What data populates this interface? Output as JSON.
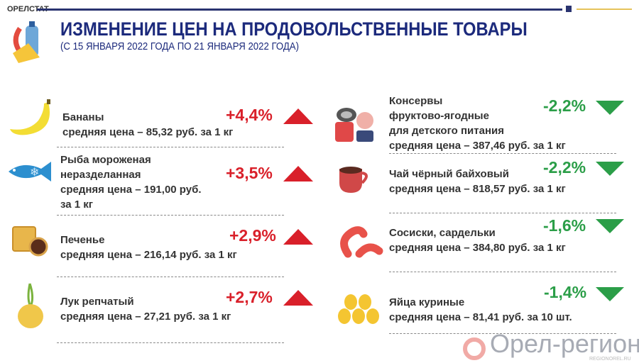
{
  "header": {
    "brand": "ОРЕЛСТАТ",
    "title": "ИЗМЕНЕНИЕ ЦЕН НА ПРОДОВОЛЬСТВЕННЫЕ ТОВАРЫ",
    "subtitle": "(С 15 ЯНВАРЯ 2022 ГОДА ПО 21 ЯНВАРЯ 2022 ГОДА)"
  },
  "colors": {
    "up": "#d9202a",
    "down": "#2b9e48",
    "title": "#1c2a7c"
  },
  "left": [
    {
      "lines": [
        "Бананы",
        "средняя цена – 85,32 руб. за 1 кг"
      ],
      "change": "+4,4%",
      "icon": "banana-icon"
    },
    {
      "lines": [
        "Рыба мороженая",
        "неразделанная",
        "средняя цена –  191,00 руб.",
        "за 1 кг"
      ],
      "change": "+3,5%",
      "icon": "fish-icon"
    },
    {
      "lines": [
        "Печенье",
        "средняя цена – 216,14 руб. за 1 кг"
      ],
      "change": "+2,9%",
      "icon": "cookie-icon"
    },
    {
      "lines": [
        "Лук репчатый",
        "средняя цена – 27,21 руб. за 1 кг"
      ],
      "change": "+2,7%",
      "icon": "onion-icon"
    }
  ],
  "right": [
    {
      "lines": [
        "Консервы",
        "фруктово-ягодные",
        "для детского питания",
        "средняя цена – 387,46 руб. за 1 кг"
      ],
      "change": "-2,2%",
      "icon": "baby-food-icon"
    },
    {
      "lines": [
        "Чай чёрный байховый",
        "средняя цена – 818,57 руб. за 1 кг"
      ],
      "change": "-2,2%",
      "icon": "tea-cup-icon"
    },
    {
      "lines": [
        "Сосиски, сардельки",
        "средняя цена – 384,80 руб. за 1 кг"
      ],
      "change": "-1,6%",
      "icon": "sausage-icon"
    },
    {
      "lines": [
        "Яйца куриные",
        "средняя цена – 81,41 руб. за 10 шт."
      ],
      "change": "-1,4%",
      "icon": "eggs-icon"
    }
  ],
  "watermark": {
    "text": "Орел-регион",
    "url": "REGIONOREL.RU"
  }
}
